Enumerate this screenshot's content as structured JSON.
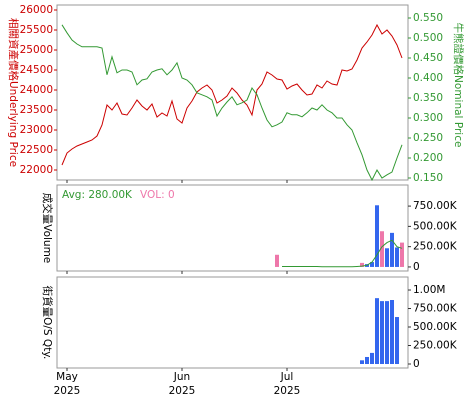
{
  "chart_data": [
    {
      "type": "line",
      "ylabel": "相關資產價格Underlying Price",
      "ylabel_color": "#cc0000",
      "y2label": "牛熊證價格Nominal Price",
      "y2label_color": "#339933",
      "x": [
        0,
        1,
        2,
        3,
        4,
        5,
        6,
        7,
        8,
        9,
        10,
        11,
        12,
        13,
        14,
        15,
        16,
        17,
        18,
        19,
        20,
        21,
        22,
        23,
        24,
        25,
        26,
        27,
        28,
        29,
        30,
        31,
        32,
        33,
        34,
        35,
        36,
        37,
        38,
        39,
        40,
        41,
        42,
        43,
        44,
        45,
        46,
        47,
        48,
        49,
        50,
        51,
        52,
        53,
        54,
        55,
        56,
        57,
        58,
        59,
        60,
        61,
        62,
        63,
        64,
        65,
        66,
        67,
        68
      ],
      "xlim": [
        -1,
        69.2
      ],
      "ylim": [
        21750,
        26125
      ],
      "yticks": [
        22000,
        22500,
        23000,
        23500,
        24000,
        24500,
        25000,
        25500,
        26000
      ],
      "y2lim": [
        0.145,
        0.5825
      ],
      "y2ticks": [
        {
          "value": 0.15,
          "label": "0.150"
        },
        {
          "value": 0.2,
          "label": "0.200"
        },
        {
          "value": 0.25,
          "label": "0.250"
        },
        {
          "value": 0.3,
          "label": "0.300"
        },
        {
          "value": 0.35,
          "label": "0.350"
        },
        {
          "value": 0.4,
          "label": "0.400"
        },
        {
          "value": 0.45,
          "label": "0.450"
        },
        {
          "value": 0.5,
          "label": "0.500"
        },
        {
          "value": 0.55,
          "label": "0.550"
        }
      ],
      "series": [
        {
          "color": "#cc0000",
          "values": [
            22125,
            22425,
            22525,
            22600,
            22650,
            22700,
            22750,
            22850,
            23125,
            23625,
            23500,
            23675,
            23400,
            23375,
            23550,
            23750,
            23600,
            23500,
            23650,
            23325,
            23425,
            23350,
            23725,
            23275,
            23175,
            23550,
            23725,
            23950,
            24050,
            24125,
            24000,
            23675,
            23750,
            23850,
            24050,
            23925,
            23750,
            23625,
            23375,
            24000,
            24150,
            24450,
            24375,
            24275,
            24250,
            24025,
            24100,
            24150,
            24000,
            23875,
            23900,
            24125,
            24050,
            24225,
            24150,
            24125,
            24500,
            24475,
            24525,
            24750,
            25050,
            25200,
            25375,
            25625,
            25400,
            25500,
            25350,
            25125,
            24800
          ]
        },
        {
          "color": "#339933",
          "axis": "y2",
          "values": [
            0.533,
            0.513,
            0.495,
            0.485,
            0.478,
            0.478,
            0.478,
            0.478,
            0.475,
            0.408,
            0.453,
            0.413,
            0.42,
            0.42,
            0.415,
            0.383,
            0.395,
            0.398,
            0.415,
            0.42,
            0.423,
            0.408,
            0.42,
            0.438,
            0.4,
            0.395,
            0.383,
            0.363,
            0.358,
            0.353,
            0.345,
            0.305,
            0.325,
            0.34,
            0.353,
            0.333,
            0.338,
            0.345,
            0.375,
            0.358,
            0.325,
            0.295,
            0.278,
            0.283,
            0.29,
            0.313,
            0.308,
            0.308,
            0.303,
            0.313,
            0.325,
            0.32,
            0.333,
            0.32,
            0.313,
            0.3,
            0.3,
            0.283,
            0.27,
            0.238,
            0.208,
            0.17,
            0.145,
            0.17,
            0.15,
            0.158,
            0.165,
            0.2,
            0.233
          ]
        }
      ]
    },
    {
      "type": "bar",
      "ylabel": "成交量Volume",
      "legend": [
        {
          "label": "Avg: 280.00K",
          "color": "#339933"
        },
        {
          "label": "VOL: 0",
          "color": "#ee77aa"
        }
      ],
      "xlim": [
        -1,
        69.2
      ],
      "ylim": [
        -50000,
        1010000
      ],
      "yticks": [
        0,
        {
          "value": 250000,
          "label": "250.00K"
        },
        {
          "value": 500000,
          "label": "500.00K"
        },
        {
          "value": 750000,
          "label": "750.00K"
        }
      ],
      "x": [
        43,
        60,
        61,
        62,
        63,
        64,
        65,
        66,
        67,
        68
      ],
      "values": [
        150000,
        50000,
        35000,
        60000,
        760000,
        440000,
        230000,
        420000,
        240000,
        300000
      ],
      "colors": [
        "#ee77aa",
        "#ee77aa",
        "#3366ee",
        "#3366ee",
        "#3366ee",
        "#ee77aa",
        "#3366ee",
        "#3366ee",
        "#3366ee",
        "#ee77aa"
      ],
      "series": [
        {
          "color": "#339933",
          "x": [
            44,
            45,
            46,
            47,
            48,
            49,
            50,
            51,
            52,
            53,
            54,
            55,
            56,
            57,
            58,
            59,
            60,
            61,
            62,
            63,
            64,
            65,
            66,
            67,
            68
          ],
          "values": [
            5000,
            5000,
            5000,
            5000,
            5000,
            5000,
            5000,
            5000,
            2000,
            2000,
            2000,
            2000,
            2000,
            2000,
            2000,
            5000,
            10000,
            20000,
            60000,
            150000,
            250000,
            300000,
            330000,
            250000,
            230000
          ]
        }
      ]
    },
    {
      "type": "bar",
      "ylabel": "街貨量O/S Qty.",
      "xlim": [
        -1,
        69.2
      ],
      "ylim": [
        -54000,
        1176000
      ],
      "yticks": [
        0,
        {
          "value": 250000,
          "label": "250.00K"
        },
        {
          "value": 500000,
          "label": "500.00K"
        },
        {
          "value": 750000,
          "label": "750.00K"
        },
        {
          "value": 1000000,
          "label": "1.00M"
        }
      ],
      "x": [
        60,
        61,
        62,
        63,
        64,
        65,
        66,
        67
      ],
      "values": [
        50000,
        95000,
        150000,
        890000,
        850000,
        850000,
        865000,
        635000
      ],
      "color": "#3366ee",
      "xticks": [
        {
          "value": 1,
          "label": "May",
          "year": "2025"
        },
        {
          "value": 24,
          "label": "Jun",
          "year": "2025"
        },
        {
          "value": 45,
          "label": "Jul",
          "year": "2025"
        }
      ]
    }
  ]
}
